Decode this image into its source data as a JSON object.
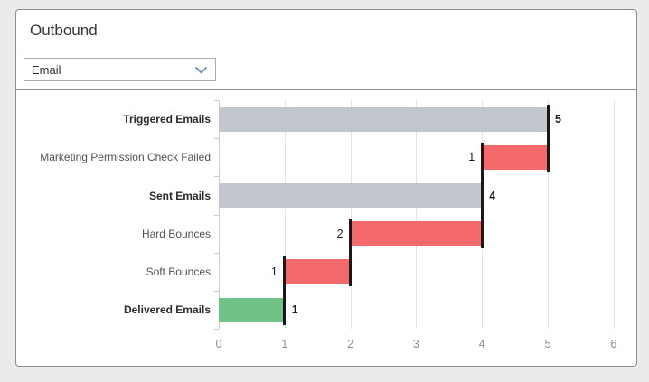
{
  "card": {
    "title": "Outbound",
    "channel_select": {
      "value": "Email",
      "chevron_color": "#5e87b3"
    }
  },
  "chart_data": {
    "type": "bar",
    "subtype": "horizontal-waterfall",
    "title": "",
    "xlabel": "",
    "ylabel": "",
    "x_axis": {
      "min": 0,
      "max": 6,
      "ticks": [
        0,
        1,
        2,
        3,
        4,
        5,
        6
      ]
    },
    "grid": true,
    "bars": [
      {
        "label": "Triggered Emails",
        "start": 0,
        "end": 5,
        "value": 5,
        "kind": "total",
        "color": "#c1c7cd",
        "bold": true,
        "value_side": "right"
      },
      {
        "label": "Marketing Permission Check Failed",
        "start": 4,
        "end": 5,
        "value": 1,
        "kind": "decrease",
        "color": "#f4696b",
        "bold": false,
        "value_side": "left"
      },
      {
        "label": "Sent Emails",
        "start": 0,
        "end": 4,
        "value": 4,
        "kind": "total",
        "color": "#c1c7cd",
        "bold": true,
        "value_side": "right"
      },
      {
        "label": "Hard Bounces",
        "start": 2,
        "end": 4,
        "value": 2,
        "kind": "decrease",
        "color": "#f4696b",
        "bold": false,
        "value_side": "left"
      },
      {
        "label": "Soft Bounces",
        "start": 1,
        "end": 2,
        "value": 1,
        "kind": "decrease",
        "color": "#f4696b",
        "bold": false,
        "value_side": "left"
      },
      {
        "label": "Delivered Emails",
        "start": 0,
        "end": 1,
        "value": 1,
        "kind": "total",
        "color": "#71c287",
        "bold": true,
        "value_side": "right"
      }
    ],
    "connectors": [
      {
        "x": 5,
        "from_row": 0,
        "to_row": 1
      },
      {
        "x": 4,
        "from_row": 1,
        "to_row": 3
      },
      {
        "x": 2,
        "from_row": 3,
        "to_row": 4
      },
      {
        "x": 1,
        "from_row": 4,
        "to_row": 5
      }
    ],
    "colors": {
      "total": "#c1c7cd",
      "negative": "#f4696b",
      "positive": "#71c287",
      "connector": "#191919"
    }
  }
}
